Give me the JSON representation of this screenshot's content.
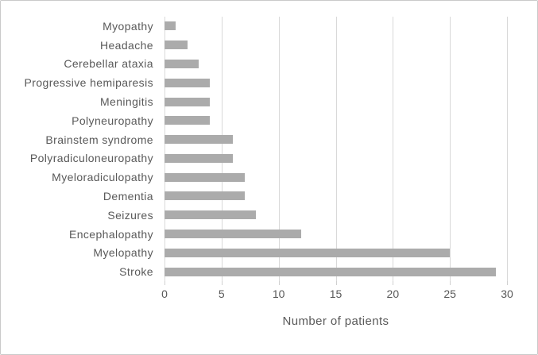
{
  "chart_data": {
    "type": "bar",
    "orientation": "horizontal",
    "title": "",
    "categories": [
      "Myopathy",
      "Headache",
      "Cerebellar ataxia",
      "Progressive hemiparesis",
      "Meningitis",
      "Polyneuropathy",
      "Brainstem syndrome",
      "Polyradiculoneuropathy",
      "Myeloradiculopathy",
      "Dementia",
      "Seizures",
      "Encephalopathy",
      "Myelopathy",
      "Stroke"
    ],
    "values": [
      1,
      2,
      3,
      4,
      4,
      4,
      6,
      6,
      7,
      7,
      8,
      12,
      25,
      29
    ],
    "xlabel": "Number of patients",
    "xlim": [
      0,
      30
    ],
    "xticks": [
      0,
      5,
      10,
      15,
      20,
      25,
      30
    ],
    "grid": true,
    "legend": false,
    "colors": {
      "bar": "#ababab",
      "gridline": "#d9d9d9",
      "tick": "#d0d0d0",
      "text": "#595959",
      "border": "#c9c9c9",
      "background": "#ffffff"
    }
  }
}
